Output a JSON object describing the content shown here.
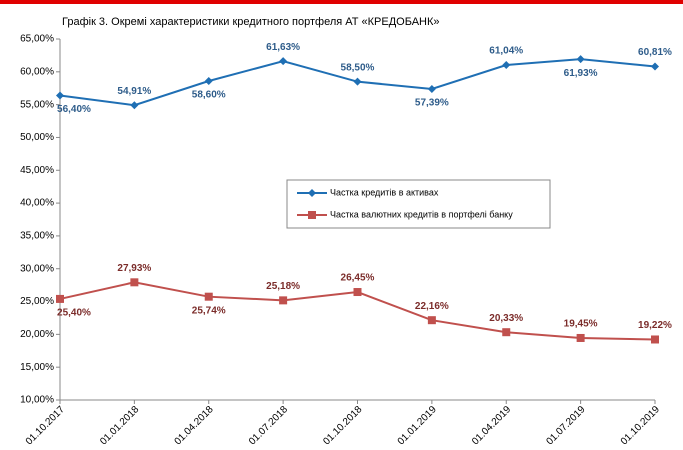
{
  "chart_data": {
    "type": "line",
    "title": "Графік 3. Окремі характеристики кредитного портфеля АТ «КРЕДОБАНК»",
    "categories": [
      "01.10.2017",
      "01.01.2018",
      "01.04.2018",
      "01.07.2018",
      "01.10.2018",
      "01.01.2019",
      "01.04.2019",
      "01.07.2019",
      "01.10.2019"
    ],
    "series": [
      {
        "name": "Частка кредитів в активах",
        "color": "#1f6fb4",
        "marker": "diamond",
        "values": [
          56.4,
          54.91,
          58.6,
          61.63,
          58.5,
          57.39,
          61.04,
          61.93,
          60.81
        ],
        "value_labels": [
          "56,40%",
          "54,91%",
          "58,60%",
          "61,63%",
          "58,50%",
          "57,39%",
          "61,04%",
          "61,93%",
          "60,81%"
        ]
      },
      {
        "name": "Частка валютних кредитів в портфелі банку",
        "color": "#c0504d",
        "marker": "square",
        "values": [
          25.4,
          27.93,
          25.74,
          25.18,
          26.45,
          22.16,
          20.33,
          19.45,
          19.22
        ],
        "value_labels": [
          "25,40%",
          "27,93%",
          "25,74%",
          "25,18%",
          "26,45%",
          "22,16%",
          "20,33%",
          "19,45%",
          "19,22%"
        ]
      }
    ],
    "ylim": [
      10,
      65
    ],
    "yticks": [
      {
        "value": 10,
        "label": "10,00%"
      },
      {
        "value": 15,
        "label": "15,00%"
      },
      {
        "value": 20,
        "label": "20,00%"
      },
      {
        "value": 25,
        "label": "25,00%"
      },
      {
        "value": 30,
        "label": "30,00%"
      },
      {
        "value": 35,
        "label": "35,00%"
      },
      {
        "value": 40,
        "label": "40,00%"
      },
      {
        "value": 45,
        "label": "45,00%"
      },
      {
        "value": 50,
        "label": "50,00%"
      },
      {
        "value": 55,
        "label": "55,00%"
      },
      {
        "value": 60,
        "label": "60,00%"
      },
      {
        "value": 65,
        "label": "65,00%"
      }
    ]
  }
}
